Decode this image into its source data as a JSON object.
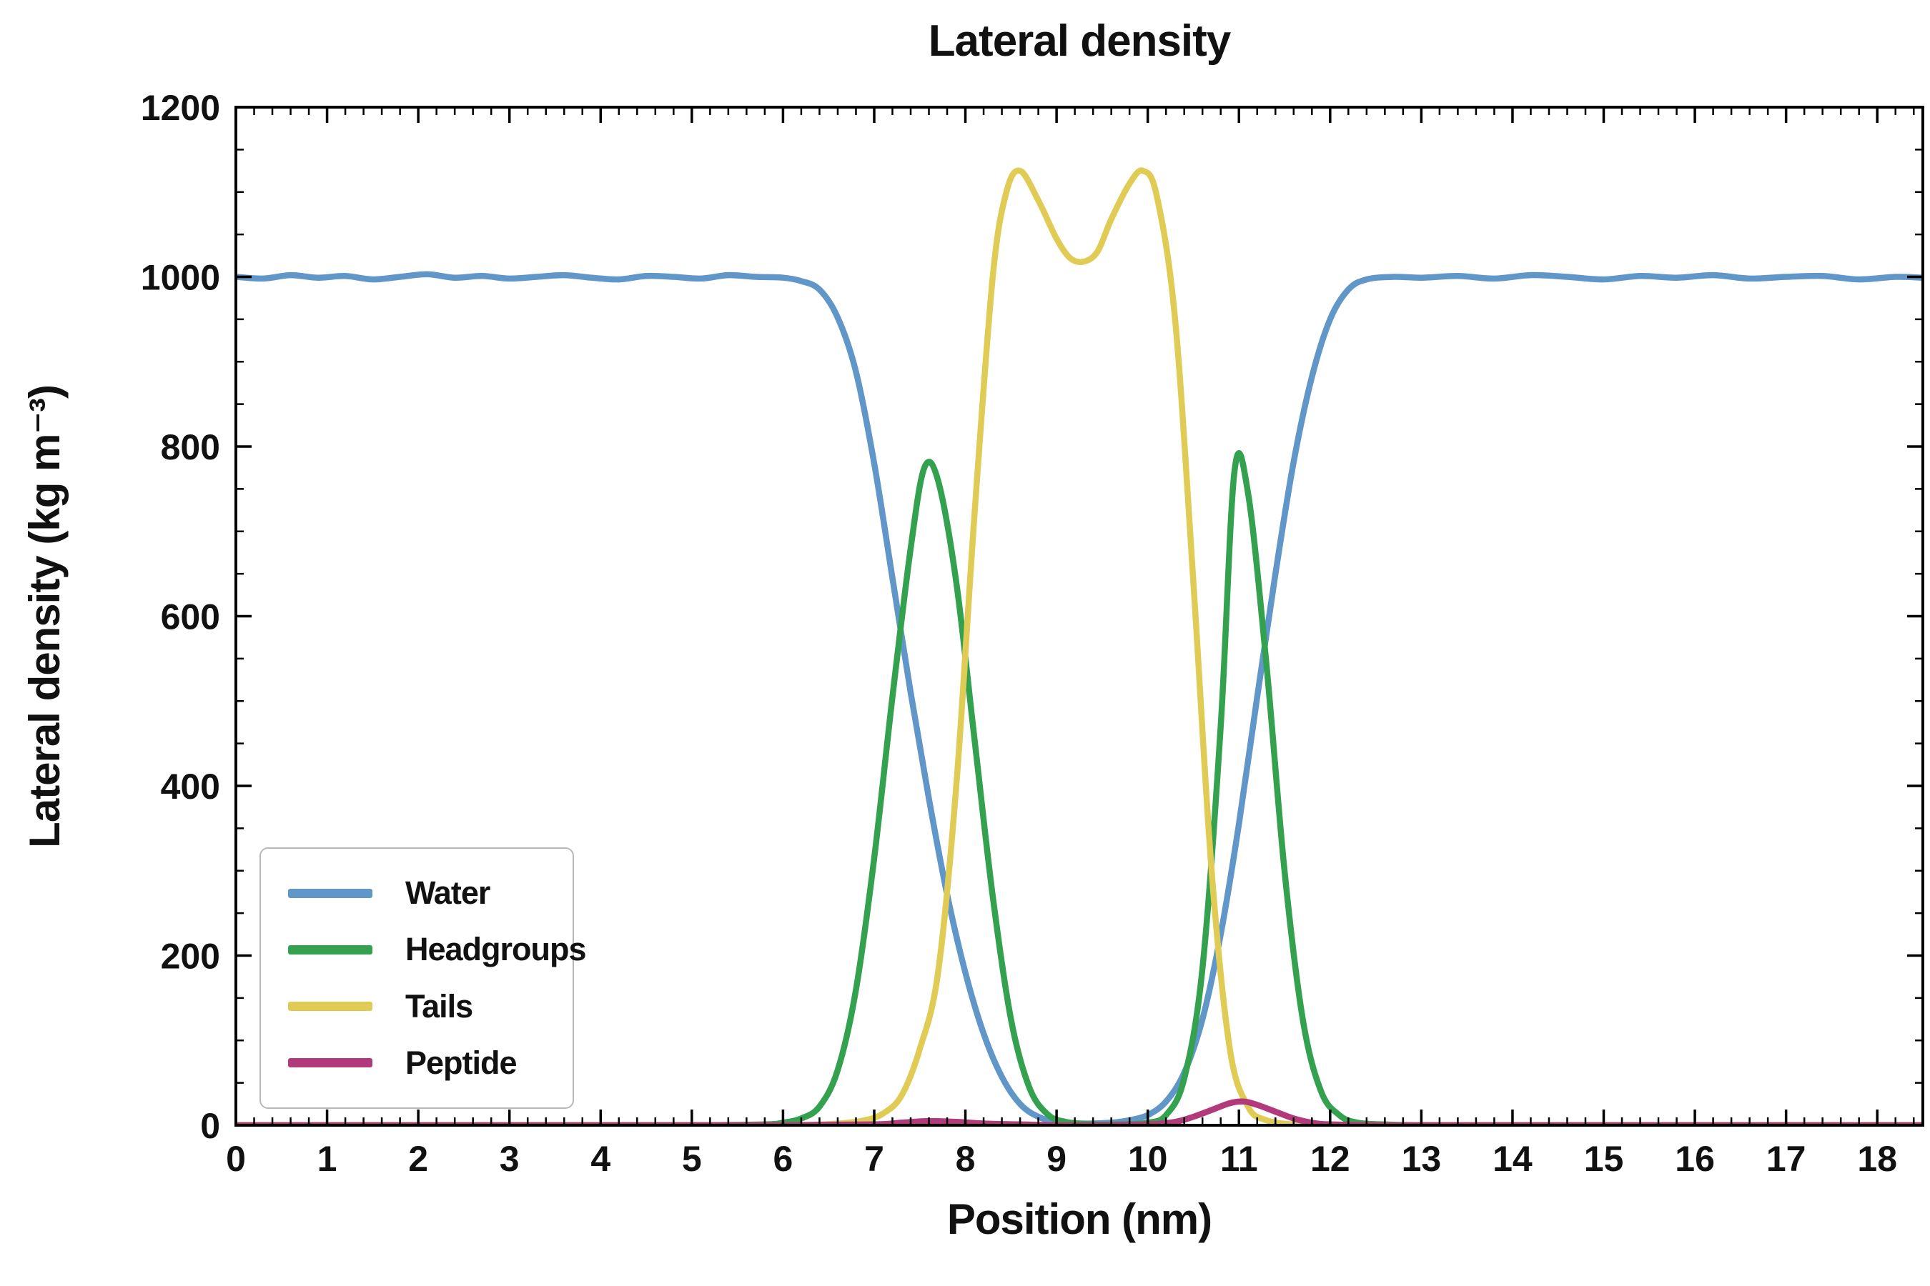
{
  "chart_data": {
    "type": "line",
    "title": "Lateral density",
    "xlabel": "Position (nm)",
    "ylabel": "Lateral density (kg m⁻³)",
    "xlim": [
      0,
      18.5
    ],
    "ylim": [
      0,
      1200
    ],
    "x_major_ticks": [
      0,
      1,
      2,
      3,
      4,
      5,
      6,
      7,
      8,
      9,
      10,
      11,
      12,
      13,
      14,
      15,
      16,
      17,
      18
    ],
    "x_minor_step": 0.2,
    "y_major_ticks": [
      0,
      200,
      400,
      600,
      800,
      1000,
      1200
    ],
    "y_minor_step": 50,
    "grid": false,
    "legend_position": "lower left",
    "axis_color": "#000000",
    "background": "#ffffff",
    "series": [
      {
        "name": "Water",
        "color": "#6096c8",
        "x": [
          0,
          0.3,
          0.6,
          0.9,
          1.2,
          1.5,
          1.8,
          2.1,
          2.4,
          2.7,
          3.0,
          3.3,
          3.6,
          3.9,
          4.2,
          4.5,
          4.8,
          5.1,
          5.4,
          5.7,
          6.0,
          6.2,
          6.4,
          6.6,
          6.8,
          7.0,
          7.2,
          7.4,
          7.6,
          7.8,
          8.0,
          8.2,
          8.4,
          8.6,
          8.8,
          9.0,
          9.3,
          9.6,
          9.8,
          10.0,
          10.2,
          10.4,
          10.6,
          10.8,
          11.0,
          11.2,
          11.4,
          11.6,
          11.8,
          12.0,
          12.2,
          12.4,
          12.7,
          13.0,
          13.4,
          13.8,
          14.2,
          14.6,
          15.0,
          15.4,
          15.8,
          16.2,
          16.6,
          17.0,
          17.4,
          17.8,
          18.2,
          18.5
        ],
        "y": [
          1000,
          998,
          1002,
          999,
          1001,
          997,
          1000,
          1003,
          999,
          1001,
          998,
          1000,
          1002,
          999,
          997,
          1001,
          1000,
          998,
          1002,
          1000,
          999,
          995,
          985,
          952,
          888,
          780,
          645,
          510,
          385,
          272,
          180,
          108,
          57,
          25,
          10,
          4,
          2,
          3,
          6,
          12,
          28,
          62,
          125,
          225,
          355,
          505,
          650,
          782,
          882,
          950,
          985,
          997,
          1000,
          999,
          1001,
          998,
          1002,
          1000,
          997,
          1001,
          999,
          1002,
          998,
          1000,
          1001,
          997,
          1000,
          999
        ]
      },
      {
        "name": "Headgroups",
        "color": "#33a14e",
        "x": [
          0,
          1,
          2,
          3,
          4,
          5,
          5.8,
          6.0,
          6.2,
          6.4,
          6.6,
          6.8,
          7.0,
          7.2,
          7.4,
          7.55,
          7.7,
          7.9,
          8.1,
          8.3,
          8.5,
          8.7,
          8.9,
          9.1,
          9.4,
          9.7,
          10.0,
          10.2,
          10.4,
          10.6,
          10.8,
          10.95,
          11.1,
          11.3,
          11.5,
          11.7,
          11.9,
          12.1,
          12.3,
          12.6,
          13.0,
          14,
          15,
          16,
          17,
          18,
          18.5
        ],
        "y": [
          0,
          0,
          0,
          0,
          0,
          0,
          1,
          3,
          8,
          22,
          65,
          160,
          315,
          505,
          680,
          775,
          760,
          640,
          455,
          270,
          125,
          45,
          13,
          4,
          1,
          1,
          3,
          12,
          55,
          185,
          470,
          770,
          745,
          545,
          300,
          125,
          40,
          12,
          3,
          1,
          0,
          0,
          0,
          0,
          0,
          0,
          0
        ]
      },
      {
        "name": "Tails",
        "color": "#e0cc55",
        "x": [
          0,
          2,
          4,
          6,
          6.6,
          6.9,
          7.1,
          7.3,
          7.5,
          7.7,
          7.9,
          8.1,
          8.3,
          8.45,
          8.6,
          8.8,
          9.0,
          9.15,
          9.3,
          9.45,
          9.6,
          9.8,
          9.95,
          10.1,
          10.3,
          10.5,
          10.7,
          10.9,
          11.1,
          11.3,
          11.6,
          12,
          14,
          16,
          18.5
        ],
        "y": [
          0,
          0,
          0,
          0,
          2,
          6,
          14,
          35,
          90,
          180,
          400,
          720,
          1000,
          1100,
          1125,
          1090,
          1045,
          1022,
          1018,
          1030,
          1068,
          1110,
          1125,
          1095,
          950,
          640,
          300,
          90,
          22,
          6,
          1,
          0,
          0,
          0,
          0
        ]
      },
      {
        "name": "Peptide",
        "color": "#b23a7b",
        "x": [
          0,
          2,
          4,
          6,
          7.0,
          7.3,
          7.6,
          7.9,
          8.2,
          8.6,
          9.0,
          9.5,
          10.0,
          10.3,
          10.5,
          10.7,
          10.9,
          11.05,
          11.2,
          11.4,
          11.6,
          11.8,
          12.0,
          12.5,
          13,
          14,
          16,
          18.5
        ],
        "y": [
          0,
          0,
          0,
          0,
          1,
          3,
          5,
          4,
          2,
          1,
          0,
          0,
          1,
          4,
          10,
          18,
          26,
          28,
          24,
          16,
          8,
          3,
          1,
          0,
          0,
          0,
          0,
          0
        ]
      }
    ]
  }
}
